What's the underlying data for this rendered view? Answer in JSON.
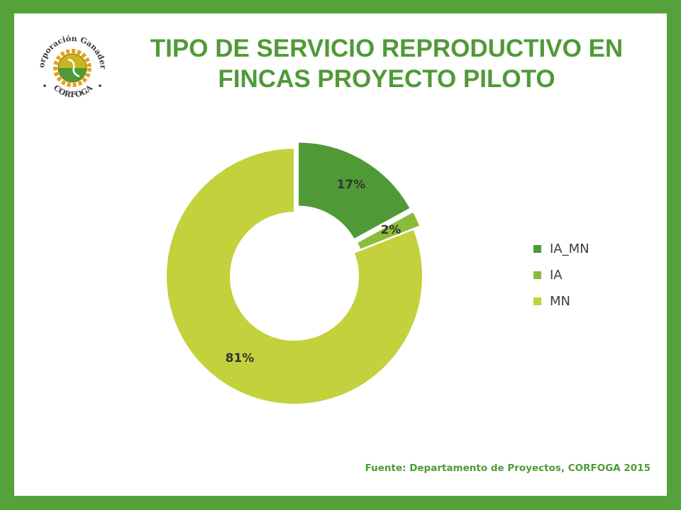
{
  "header": {
    "title_line1": "TIPO DE SERVICIO REPRODUCTIVO EN",
    "title_line2": "FINCAS PROYECTO PILOTO"
  },
  "logo": {
    "text_top": "Corporación Ganadera",
    "text_bottom": "CORFOGA"
  },
  "source": "Fuente: Departamento de Proyectos, CORFOGA 2015",
  "chart_data": {
    "type": "pie",
    "donut": true,
    "series": [
      {
        "name": "IA_MN",
        "value": 17,
        "label": "17%",
        "color": "#4f9a37",
        "exploded": true
      },
      {
        "name": "IA",
        "value": 2,
        "label": "2%",
        "color": "#8cbb3c",
        "exploded": true
      },
      {
        "name": "MN",
        "value": 81,
        "label": "81%",
        "color": "#c3d13c",
        "exploded": false
      }
    ],
    "legend_position": "right"
  },
  "colors": {
    "frame": "#55a23a",
    "title": "#4f9a37"
  }
}
